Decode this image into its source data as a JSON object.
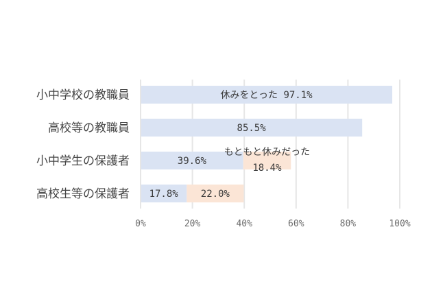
{
  "chart_data": {
    "type": "bar",
    "orientation": "horizontal",
    "stacked": true,
    "categories": [
      "小中学校の教職員",
      "高校等の教職員",
      "小中学生の保護者",
      "高校生等の保護者"
    ],
    "series": [
      {
        "name": "休みをとった",
        "values": [
          97.1,
          85.5,
          39.6,
          17.8
        ],
        "color": "#dae3f3"
      },
      {
        "name": "もともと休みだった",
        "values": [
          null,
          null,
          18.4,
          22.0
        ],
        "color": "#fbe5d6"
      }
    ],
    "data_labels": [
      [
        "97.1%",
        "85.5%",
        "39.6%",
        "17.8%"
      ],
      [
        "",
        "",
        "18.4%",
        "22.0%"
      ]
    ],
    "x_ticks": [
      "0%",
      "20%",
      "40%",
      "60%",
      "80%",
      "100%"
    ],
    "xlim": [
      0,
      100
    ],
    "grid": true,
    "legend": "none"
  }
}
